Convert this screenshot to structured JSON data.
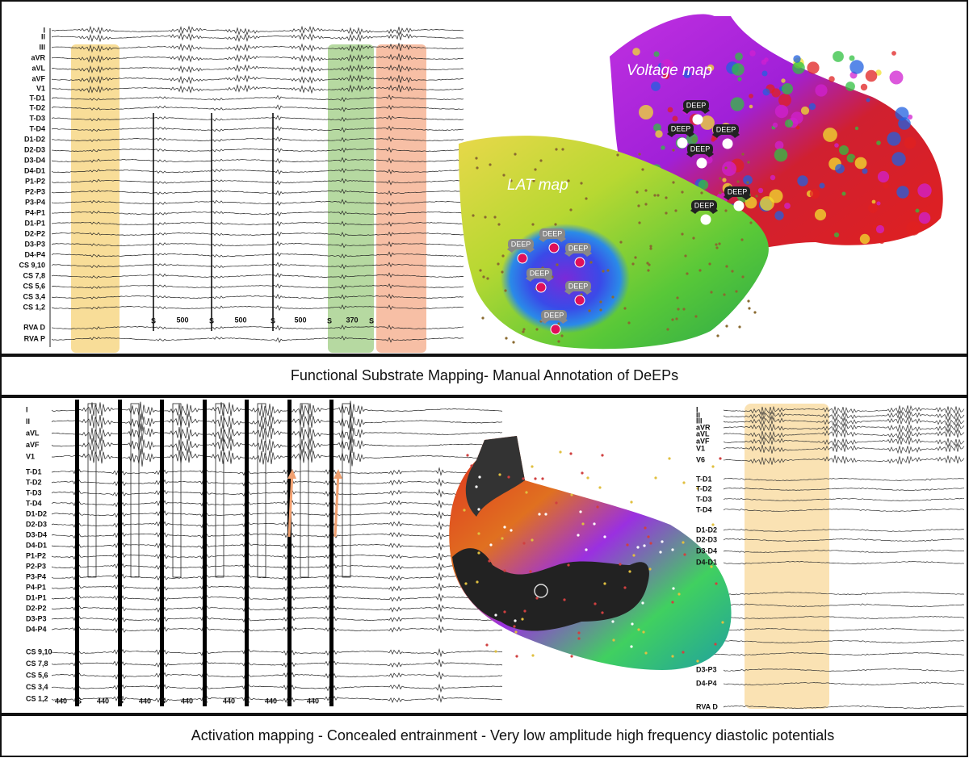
{
  "top_panel": {
    "egm": {
      "channels": [
        "I",
        "II",
        "III",
        "aVR",
        "aVL",
        "aVF",
        "V1",
        "T-D1",
        "T-D2",
        "T-D3",
        "T-D4",
        "D1-D2",
        "D2-D3",
        "D3-D4",
        "D4-D1",
        "P1-P2",
        "P2-P3",
        "P3-P4",
        "P4-P1",
        "D1-P1",
        "D2-P2",
        "D3-P3",
        "D4-P4",
        "CS 9,10",
        "CS 7,8",
        "CS 5,6",
        "CS 3,4",
        "CS 1,2",
        "RVA D",
        "RVA P"
      ],
      "stim_marker": "S",
      "intervals": [
        500,
        500,
        500,
        370
      ]
    },
    "voltage_map": {
      "label": "Voltage  map",
      "markers": [
        "DEEP",
        "DEEP",
        "DEEP",
        "DEEP",
        "DEEP",
        "DEEP"
      ]
    },
    "lat_map": {
      "label": "LAT map",
      "markers": [
        "DEEP",
        "DEEP",
        "DEEP",
        "DEEP",
        "DEEP",
        "DEEP"
      ]
    }
  },
  "caption_1": "Functional Substrate Mapping- Manual Annotation of DeEPs",
  "bottom_panel": {
    "egm_left": {
      "channels": [
        "I",
        "II",
        "aVL",
        "aVF",
        "V1",
        "T-D1",
        "T-D2",
        "T-D3",
        "T-D4",
        "D1-D2",
        "D2-D3",
        "D3-D4",
        "D4-D1",
        "P1-P2",
        "P2-P3",
        "P3-P4",
        "P4-P1",
        "D1-P1",
        "D2-P2",
        "D3-P3",
        "D4-P4",
        "CS 9,10",
        "CS 7,8",
        "CS 5,6",
        "CS 3,4",
        "CS 1,2"
      ],
      "stim_marker": "S",
      "intervals": [
        440,
        440,
        440,
        440,
        440,
        440,
        440
      ]
    },
    "egm_right": {
      "channels": [
        "I",
        "II",
        "III",
        "aVR",
        "aVL",
        "aVF",
        "V1",
        "V6",
        "T-D1",
        "T-D2",
        "T-D3",
        "T-D4",
        "D1-D2",
        "D2-D3",
        "D3-D4",
        "D4-D1",
        "D3-P3",
        "D4-P4",
        "RVA D"
      ]
    }
  },
  "caption_2": "Activation mapping - Concealed entrainment - Very low amplitude high frequency diastolic potentials"
}
